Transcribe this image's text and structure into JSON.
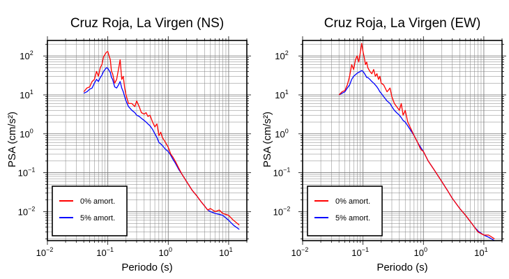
{
  "colors": {
    "series_0pct": "#ff0000",
    "series_5pct": "#0000ff",
    "grid": "#808080",
    "frame": "#000000"
  },
  "chart_data": [
    {
      "type": "line",
      "title": "Cruz Roja, La Virgen (NS)",
      "xlabel": "Periodo (s)",
      "ylabel": "PSA (cm/s²)",
      "xscale": "log",
      "yscale": "log",
      "xlim": [
        0.01,
        20
      ],
      "ylim": [
        0.0018,
        250
      ],
      "grid": true,
      "legend_position": "bottom-left",
      "x_ticks": [
        {
          "base": "10",
          "exp": "−2"
        },
        {
          "base": "10",
          "exp": "−1"
        },
        {
          "base": "10",
          "exp": "0"
        },
        {
          "base": "10",
          "exp": "1"
        }
      ],
      "y_ticks": [
        {
          "base": "10",
          "exp": "−2"
        },
        {
          "base": "10",
          "exp": "−1"
        },
        {
          "base": "10",
          "exp": "0"
        },
        {
          "base": "10",
          "exp": "1"
        },
        {
          "base": "10",
          "exp": "2"
        }
      ],
      "series": [
        {
          "name": "0% amort.",
          "x": [
            0.04,
            0.045,
            0.05,
            0.055,
            0.06,
            0.065,
            0.07,
            0.075,
            0.08,
            0.085,
            0.09,
            0.095,
            0.1,
            0.105,
            0.11,
            0.115,
            0.12,
            0.13,
            0.14,
            0.15,
            0.16,
            0.17,
            0.18,
            0.19,
            0.2,
            0.22,
            0.25,
            0.28,
            0.3,
            0.33,
            0.36,
            0.4,
            0.43,
            0.46,
            0.5,
            0.55,
            0.6,
            0.65,
            0.7,
            0.75,
            0.8,
            0.9,
            1.0,
            1.1,
            1.2,
            1.3,
            1.5,
            1.7,
            2.0,
            2.5,
            3.0,
            3.5,
            4.0,
            4.5,
            5.0,
            6.0,
            7.0,
            8.0,
            10.0,
            12.0,
            15.0
          ],
          "y": [
            12,
            15,
            16,
            22,
            25,
            40,
            30,
            50,
            60,
            95,
            110,
            125,
            130,
            100,
            80,
            40,
            35,
            20,
            25,
            45,
            80,
            25,
            30,
            15,
            10,
            6,
            6,
            5,
            7,
            5,
            3.5,
            3.2,
            3.5,
            2.8,
            3.0,
            2.0,
            1.5,
            1.8,
            0.9,
            1.1,
            0.8,
            0.6,
            0.45,
            0.3,
            0.25,
            0.2,
            0.13,
            0.09,
            0.06,
            0.035,
            0.025,
            0.018,
            0.014,
            0.011,
            0.012,
            0.01,
            0.011,
            0.009,
            0.008,
            0.006,
            0.0045
          ]
        },
        {
          "name": "5% amort.",
          "x": [
            0.04,
            0.045,
            0.05,
            0.055,
            0.06,
            0.065,
            0.07,
            0.075,
            0.08,
            0.085,
            0.09,
            0.095,
            0.1,
            0.105,
            0.11,
            0.115,
            0.12,
            0.13,
            0.14,
            0.15,
            0.16,
            0.17,
            0.18,
            0.19,
            0.2,
            0.22,
            0.25,
            0.28,
            0.3,
            0.33,
            0.36,
            0.4,
            0.43,
            0.46,
            0.5,
            0.55,
            0.6,
            0.65,
            0.7,
            0.75,
            0.8,
            0.9,
            1.0,
            1.1,
            1.2,
            1.3,
            1.5,
            1.7,
            2.0,
            2.5,
            3.0,
            3.5,
            4.0,
            4.5,
            5.0,
            6.0,
            7.0,
            8.0,
            10.0,
            12.0,
            15.0
          ],
          "y": [
            11,
            12,
            14,
            15,
            20,
            25,
            22,
            28,
            32,
            40,
            45,
            50,
            48,
            42,
            38,
            28,
            25,
            16,
            15,
            18,
            22,
            15,
            12,
            9,
            7,
            5,
            4,
            3.5,
            3.0,
            2.8,
            2.5,
            2.2,
            2.0,
            1.8,
            1.6,
            1.3,
            1.0,
            0.8,
            0.6,
            0.55,
            0.5,
            0.4,
            0.35,
            0.28,
            0.22,
            0.18,
            0.12,
            0.09,
            0.06,
            0.035,
            0.025,
            0.018,
            0.014,
            0.011,
            0.01,
            0.009,
            0.0085,
            0.008,
            0.006,
            0.0045,
            0.0035
          ]
        }
      ],
      "legend": [
        "0% amort.",
        "5% amort."
      ]
    },
    {
      "type": "line",
      "title": "Cruz Roja, La Virgen (EW)",
      "xlabel": "Periodo (s)",
      "ylabel": "PSA (cm/s²)",
      "xscale": "log",
      "yscale": "log",
      "xlim": [
        0.01,
        20
      ],
      "ylim": [
        0.0018,
        250
      ],
      "grid": true,
      "legend_position": "bottom-left",
      "x_ticks": [
        {
          "base": "10",
          "exp": "−2"
        },
        {
          "base": "10",
          "exp": "−1"
        },
        {
          "base": "10",
          "exp": "0"
        },
        {
          "base": "10",
          "exp": "1"
        }
      ],
      "y_ticks": [
        {
          "base": "10",
          "exp": "−2"
        },
        {
          "base": "10",
          "exp": "−1"
        },
        {
          "base": "10",
          "exp": "0"
        },
        {
          "base": "10",
          "exp": "1"
        },
        {
          "base": "10",
          "exp": "2"
        }
      ],
      "series": [
        {
          "name": "0% amort.",
          "x": [
            0.04,
            0.045,
            0.05,
            0.055,
            0.06,
            0.065,
            0.07,
            0.075,
            0.08,
            0.085,
            0.09,
            0.095,
            0.1,
            0.105,
            0.11,
            0.115,
            0.12,
            0.13,
            0.14,
            0.15,
            0.16,
            0.17,
            0.18,
            0.19,
            0.2,
            0.22,
            0.25,
            0.28,
            0.3,
            0.33,
            0.36,
            0.4,
            0.43,
            0.46,
            0.5,
            0.55,
            0.6,
            0.7,
            0.8,
            0.9,
            1.0,
            1.2,
            1.5,
            2.0,
            2.5,
            3.0,
            4.0,
            5.0,
            6.0,
            7.0,
            8.0,
            10.0,
            12.0,
            15.0
          ],
          "y": [
            10,
            12,
            13,
            18,
            30,
            60,
            45,
            80,
            100,
            70,
            120,
            210,
            130,
            90,
            60,
            70,
            50,
            40,
            35,
            45,
            30,
            35,
            25,
            30,
            20,
            18,
            12,
            15,
            9,
            6,
            5,
            4,
            6,
            3,
            4,
            2.0,
            1.5,
            0.9,
            0.6,
            0.4,
            0.35,
            0.2,
            0.12,
            0.06,
            0.035,
            0.022,
            0.012,
            0.008,
            0.0055,
            0.004,
            0.003,
            0.0025,
            0.0025,
            0.002
          ]
        },
        {
          "name": "5% amort.",
          "x": [
            0.04,
            0.045,
            0.05,
            0.055,
            0.06,
            0.065,
            0.07,
            0.075,
            0.08,
            0.085,
            0.09,
            0.095,
            0.1,
            0.105,
            0.11,
            0.115,
            0.12,
            0.13,
            0.14,
            0.15,
            0.16,
            0.17,
            0.18,
            0.19,
            0.2,
            0.22,
            0.25,
            0.28,
            0.3,
            0.33,
            0.36,
            0.4,
            0.43,
            0.46,
            0.5,
            0.55,
            0.6,
            0.7,
            0.8,
            0.9,
            1.0,
            1.2,
            1.5,
            2.0,
            2.5,
            3.0,
            4.0,
            5.0,
            6.0,
            7.0,
            8.0,
            10.0,
            12.0,
            15.0
          ],
          "y": [
            10,
            11,
            12,
            15,
            18,
            25,
            30,
            33,
            36,
            38,
            40,
            42,
            40,
            36,
            32,
            28,
            28,
            25,
            22,
            20,
            18,
            16,
            14,
            12,
            11,
            9,
            7,
            6,
            5,
            4,
            3.5,
            3.0,
            2.6,
            2.2,
            2.0,
            1.6,
            1.3,
            0.9,
            0.6,
            0.45,
            0.35,
            0.2,
            0.12,
            0.06,
            0.035,
            0.022,
            0.012,
            0.008,
            0.0055,
            0.004,
            0.0032,
            0.0025,
            0.0022,
            0.0018
          ]
        }
      ],
      "legend": [
        "0% amort.",
        "5% amort."
      ]
    }
  ]
}
